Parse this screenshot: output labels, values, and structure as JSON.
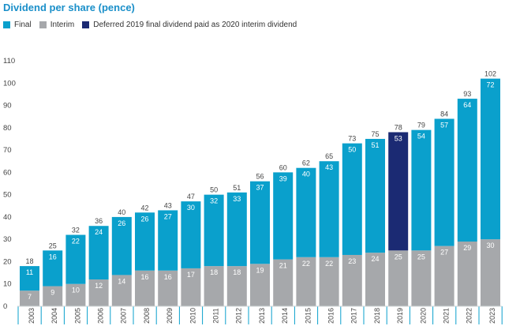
{
  "chart_data": {
    "type": "bar",
    "stacked": true,
    "title": "Dividend per share (pence)",
    "legend": [
      {
        "name": "Final",
        "color": "#0aa0cc"
      },
      {
        "name": "Interim",
        "color": "#a6a8ab"
      },
      {
        "name": "Deferred 2019 final dividend paid as 2020 interim dividend",
        "color": "#1b2a73"
      }
    ],
    "categories": [
      "2003",
      "2004",
      "2005",
      "2006",
      "2007",
      "2008",
      "2009",
      "2010",
      "2011",
      "2012",
      "2013",
      "2014",
      "2015",
      "2016",
      "2017",
      "2018",
      "2019",
      "2020",
      "2021",
      "2022",
      "2023"
    ],
    "series": [
      {
        "name": "Interim",
        "values": [
          7,
          9,
          10,
          12,
          14,
          16,
          16,
          17,
          18,
          18,
          19,
          21,
          22,
          22,
          23,
          24,
          25,
          25,
          27,
          29,
          30
        ]
      },
      {
        "name": "Final",
        "values": [
          11,
          16,
          22,
          24,
          26,
          26,
          27,
          30,
          32,
          33,
          37,
          39,
          40,
          43,
          50,
          51,
          53,
          54,
          57,
          64,
          72
        ]
      }
    ],
    "totals": [
      18,
      25,
      32,
      36,
      40,
      42,
      43,
      47,
      50,
      51,
      56,
      60,
      62,
      65,
      73,
      75,
      78,
      79,
      84,
      93,
      102
    ],
    "deferred_category": "2019",
    "yticks": [
      "0",
      "10",
      "20",
      "30",
      "40",
      "50",
      "60",
      "70",
      "80",
      "90",
      "100",
      "110"
    ],
    "ylim": [
      0,
      110
    ],
    "xlabel": "",
    "ylabel": ""
  }
}
